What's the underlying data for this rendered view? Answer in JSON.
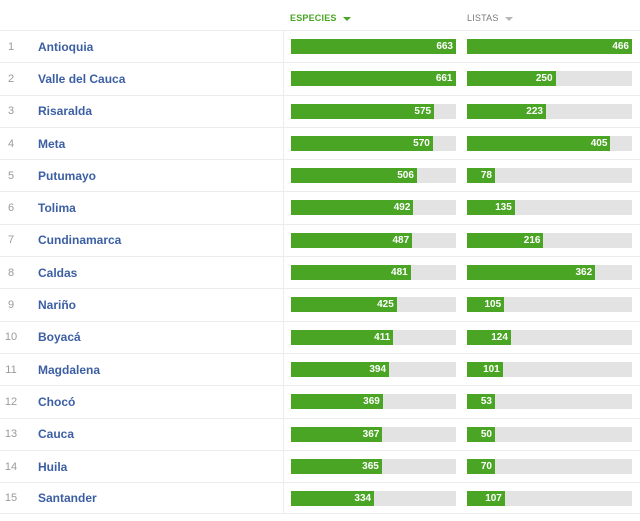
{
  "header": {
    "especies_label": "ESPECIES",
    "listas_label": "LISTAS"
  },
  "colors": {
    "accent": "#4aa524",
    "track": "#e3e3e3",
    "link": "#3c5fa3"
  },
  "scale": {
    "especies_max": 663,
    "listas_max": 466
  },
  "rows": [
    {
      "rank": "1",
      "name": "Antioquia",
      "especies": 663,
      "listas": 466
    },
    {
      "rank": "2",
      "name": "Valle del Cauca",
      "especies": 661,
      "listas": 250
    },
    {
      "rank": "3",
      "name": "Risaralda",
      "especies": 575,
      "listas": 223
    },
    {
      "rank": "4",
      "name": "Meta",
      "especies": 570,
      "listas": 405
    },
    {
      "rank": "5",
      "name": "Putumayo",
      "especies": 506,
      "listas": 78
    },
    {
      "rank": "6",
      "name": "Tolima",
      "especies": 492,
      "listas": 135
    },
    {
      "rank": "7",
      "name": "Cundinamarca",
      "especies": 487,
      "listas": 216
    },
    {
      "rank": "8",
      "name": "Caldas",
      "especies": 481,
      "listas": 362
    },
    {
      "rank": "9",
      "name": "Nariño",
      "especies": 425,
      "listas": 105
    },
    {
      "rank": "10",
      "name": "Boyacá",
      "especies": 411,
      "listas": 124
    },
    {
      "rank": "11",
      "name": "Magdalena",
      "especies": 394,
      "listas": 101
    },
    {
      "rank": "12",
      "name": "Chocó",
      "especies": 369,
      "listas": 53
    },
    {
      "rank": "13",
      "name": "Cauca",
      "especies": 367,
      "listas": 50
    },
    {
      "rank": "14",
      "name": "Huila",
      "especies": 365,
      "listas": 70
    },
    {
      "rank": "15",
      "name": "Santander",
      "especies": 334,
      "listas": 107
    }
  ]
}
